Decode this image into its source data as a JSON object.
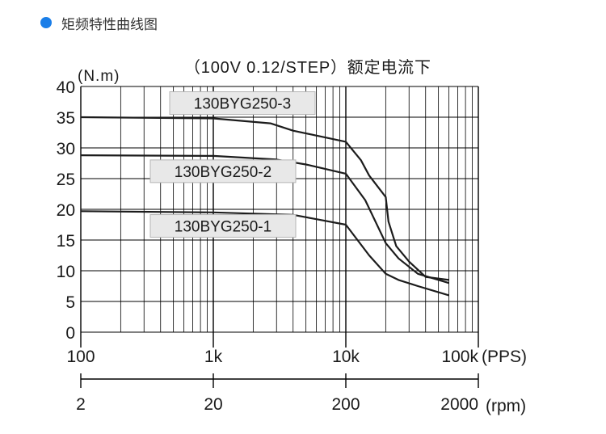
{
  "header": {
    "title": "矩频特性曲线图",
    "bullet_color": "#1a7ee8"
  },
  "chart_data": {
    "type": "line",
    "title": "（100V 0.12/STEP）额定电流下",
    "ylabel": "(N.m)",
    "ylim": [
      0,
      40
    ],
    "yticks": [
      0,
      5,
      10,
      15,
      20,
      25,
      30,
      35,
      40
    ],
    "x_scale": "log",
    "xlim": [
      100,
      100000
    ],
    "xticks": [
      {
        "value": 100,
        "label": "100"
      },
      {
        "value": 1000,
        "label": "1k"
      },
      {
        "value": 10000,
        "label": "10k"
      },
      {
        "value": 100000,
        "label": "100k"
      }
    ],
    "xunit": "(PPS)",
    "secondary_axis": {
      "ticks": [
        {
          "value": 100,
          "label": "2"
        },
        {
          "value": 1000,
          "label": "20"
        },
        {
          "value": 10000,
          "label": "200"
        },
        {
          "value": 100000,
          "label": "2000"
        }
      ],
      "unit": "(rpm)"
    },
    "grid": true,
    "series": [
      {
        "name": "130BYG250-3",
        "points": [
          [
            100,
            35
          ],
          [
            1000,
            34.8
          ],
          [
            2700,
            34
          ],
          [
            4000,
            32.8
          ],
          [
            10000,
            31
          ],
          [
            13000,
            28
          ],
          [
            15000,
            25.5
          ],
          [
            20000,
            22
          ],
          [
            21000,
            18
          ],
          [
            24000,
            14
          ],
          [
            30000,
            11.5
          ],
          [
            40000,
            9
          ],
          [
            60000,
            8.5
          ]
        ]
      },
      {
        "name": "130BYG250-2",
        "points": [
          [
            100,
            28.8
          ],
          [
            1000,
            28.7
          ],
          [
            3000,
            28.1
          ],
          [
            5000,
            27.3
          ],
          [
            10000,
            25.8
          ],
          [
            14000,
            21.5
          ],
          [
            20000,
            14.5
          ],
          [
            25000,
            12
          ],
          [
            35000,
            9.5
          ],
          [
            60000,
            8
          ]
        ]
      },
      {
        "name": "130BYG250-1",
        "points": [
          [
            100,
            19.7
          ],
          [
            1000,
            19.5
          ],
          [
            4000,
            19.1
          ],
          [
            6000,
            18.4
          ],
          [
            10000,
            17.5
          ],
          [
            15000,
            12.5
          ],
          [
            20000,
            9.5
          ],
          [
            25000,
            8.5
          ],
          [
            35000,
            7.5
          ],
          [
            50000,
            6.5
          ],
          [
            60000,
            6
          ]
        ]
      }
    ],
    "legend_labels": [
      {
        "series": "130BYG250-3",
        "value": 37.3
      },
      {
        "series": "130BYG250-2",
        "value": 26.2
      },
      {
        "series": "130BYG250-1",
        "value": 17.3
      }
    ]
  }
}
